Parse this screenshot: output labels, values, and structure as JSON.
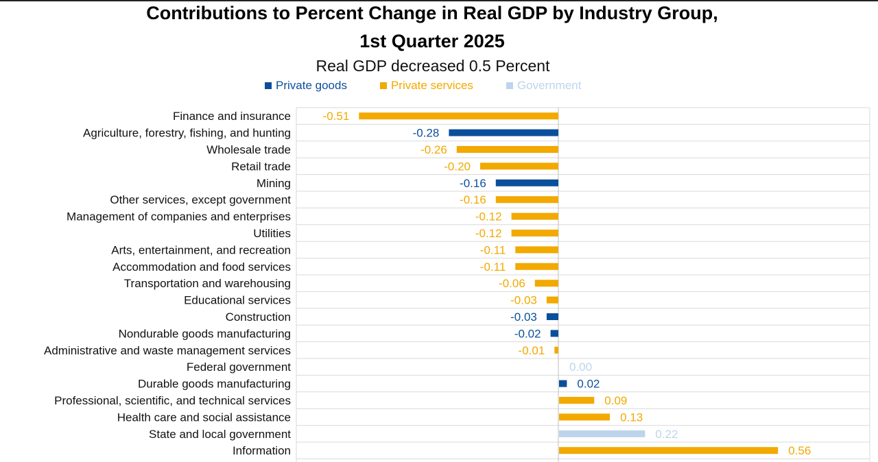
{
  "chart_data": {
    "type": "bar",
    "orientation": "horizontal",
    "title_line1": "Contributions to Percent Change in Real GDP by Industry Group,",
    "title_line2": "1st Quarter 2025",
    "subtitle": "Real GDP decreased 0.5 Percent",
    "legend": [
      {
        "name": "Private goods",
        "color": "#0b4f9c"
      },
      {
        "name": "Private services",
        "color": "#f2a900"
      },
      {
        "name": "Government",
        "color": "#bdd4ec"
      }
    ],
    "categories": [
      "Finance and insurance",
      "Agriculture, forestry, fishing, and hunting",
      "Wholesale trade",
      "Retail trade",
      "Mining",
      "Other services, except government",
      "Management of companies and enterprises",
      "Utilities",
      "Arts, entertainment, and recreation",
      "Accommodation and food services",
      "Transportation and warehousing",
      "Educational services",
      "Construction",
      "Nondurable goods manufacturing",
      "Administrative and waste management services",
      "Federal government",
      "Durable goods manufacturing",
      "Professional, scientific, and technical services",
      "Health care and social assistance",
      "State and local government",
      "Information"
    ],
    "values": [
      -0.51,
      -0.28,
      -0.26,
      -0.2,
      -0.16,
      -0.16,
      -0.12,
      -0.12,
      -0.11,
      -0.11,
      -0.06,
      -0.03,
      -0.03,
      -0.02,
      -0.01,
      0.0,
      0.02,
      0.09,
      0.13,
      0.22,
      0.56
    ],
    "value_labels": [
      "-0.51",
      "-0.28",
      "-0.26",
      "-0.20",
      "-0.16",
      "-0.16",
      "-0.12",
      "-0.12",
      "-0.11",
      "-0.11",
      "-0.06",
      "-0.03",
      "-0.03",
      "-0.02",
      "-0.01",
      "0.00",
      "0.02",
      "0.09",
      "0.13",
      "0.22",
      "0.56"
    ],
    "groups": [
      "Private services",
      "Private goods",
      "Private services",
      "Private services",
      "Private goods",
      "Private services",
      "Private services",
      "Private services",
      "Private services",
      "Private services",
      "Private services",
      "Private services",
      "Private goods",
      "Private goods",
      "Private services",
      "Government",
      "Private goods",
      "Private services",
      "Private services",
      "Government",
      "Private services"
    ],
    "xlim": [
      -0.6,
      0.6
    ],
    "grid": true
  }
}
